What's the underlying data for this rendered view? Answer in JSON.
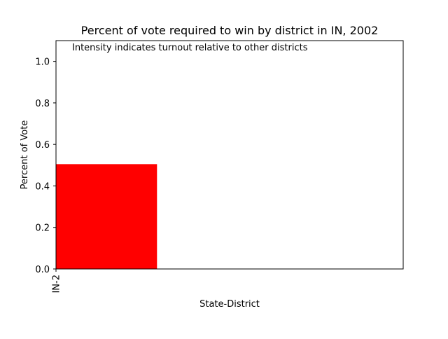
{
  "chart_data": {
    "type": "bar",
    "title": "Percent of vote required to win by district in IN, 2002",
    "annotation": "Intensity indicates turnout relative to other districts",
    "xlabel": "State-District",
    "ylabel": "Percent of Vote",
    "categories": [
      "IN-2"
    ],
    "values": [
      0.505
    ],
    "bar_colors": [
      "#ff0000"
    ],
    "ylim": [
      0,
      1.1
    ],
    "yticks": [
      0.0,
      0.2,
      0.4,
      0.6,
      0.8,
      1.0
    ],
    "ytick_labels": [
      "0.0",
      "0.2",
      "0.4",
      "0.6",
      "0.8",
      "1.0"
    ],
    "xtick_labels": [
      "IN-2"
    ],
    "grid": false,
    "legend": "none"
  }
}
